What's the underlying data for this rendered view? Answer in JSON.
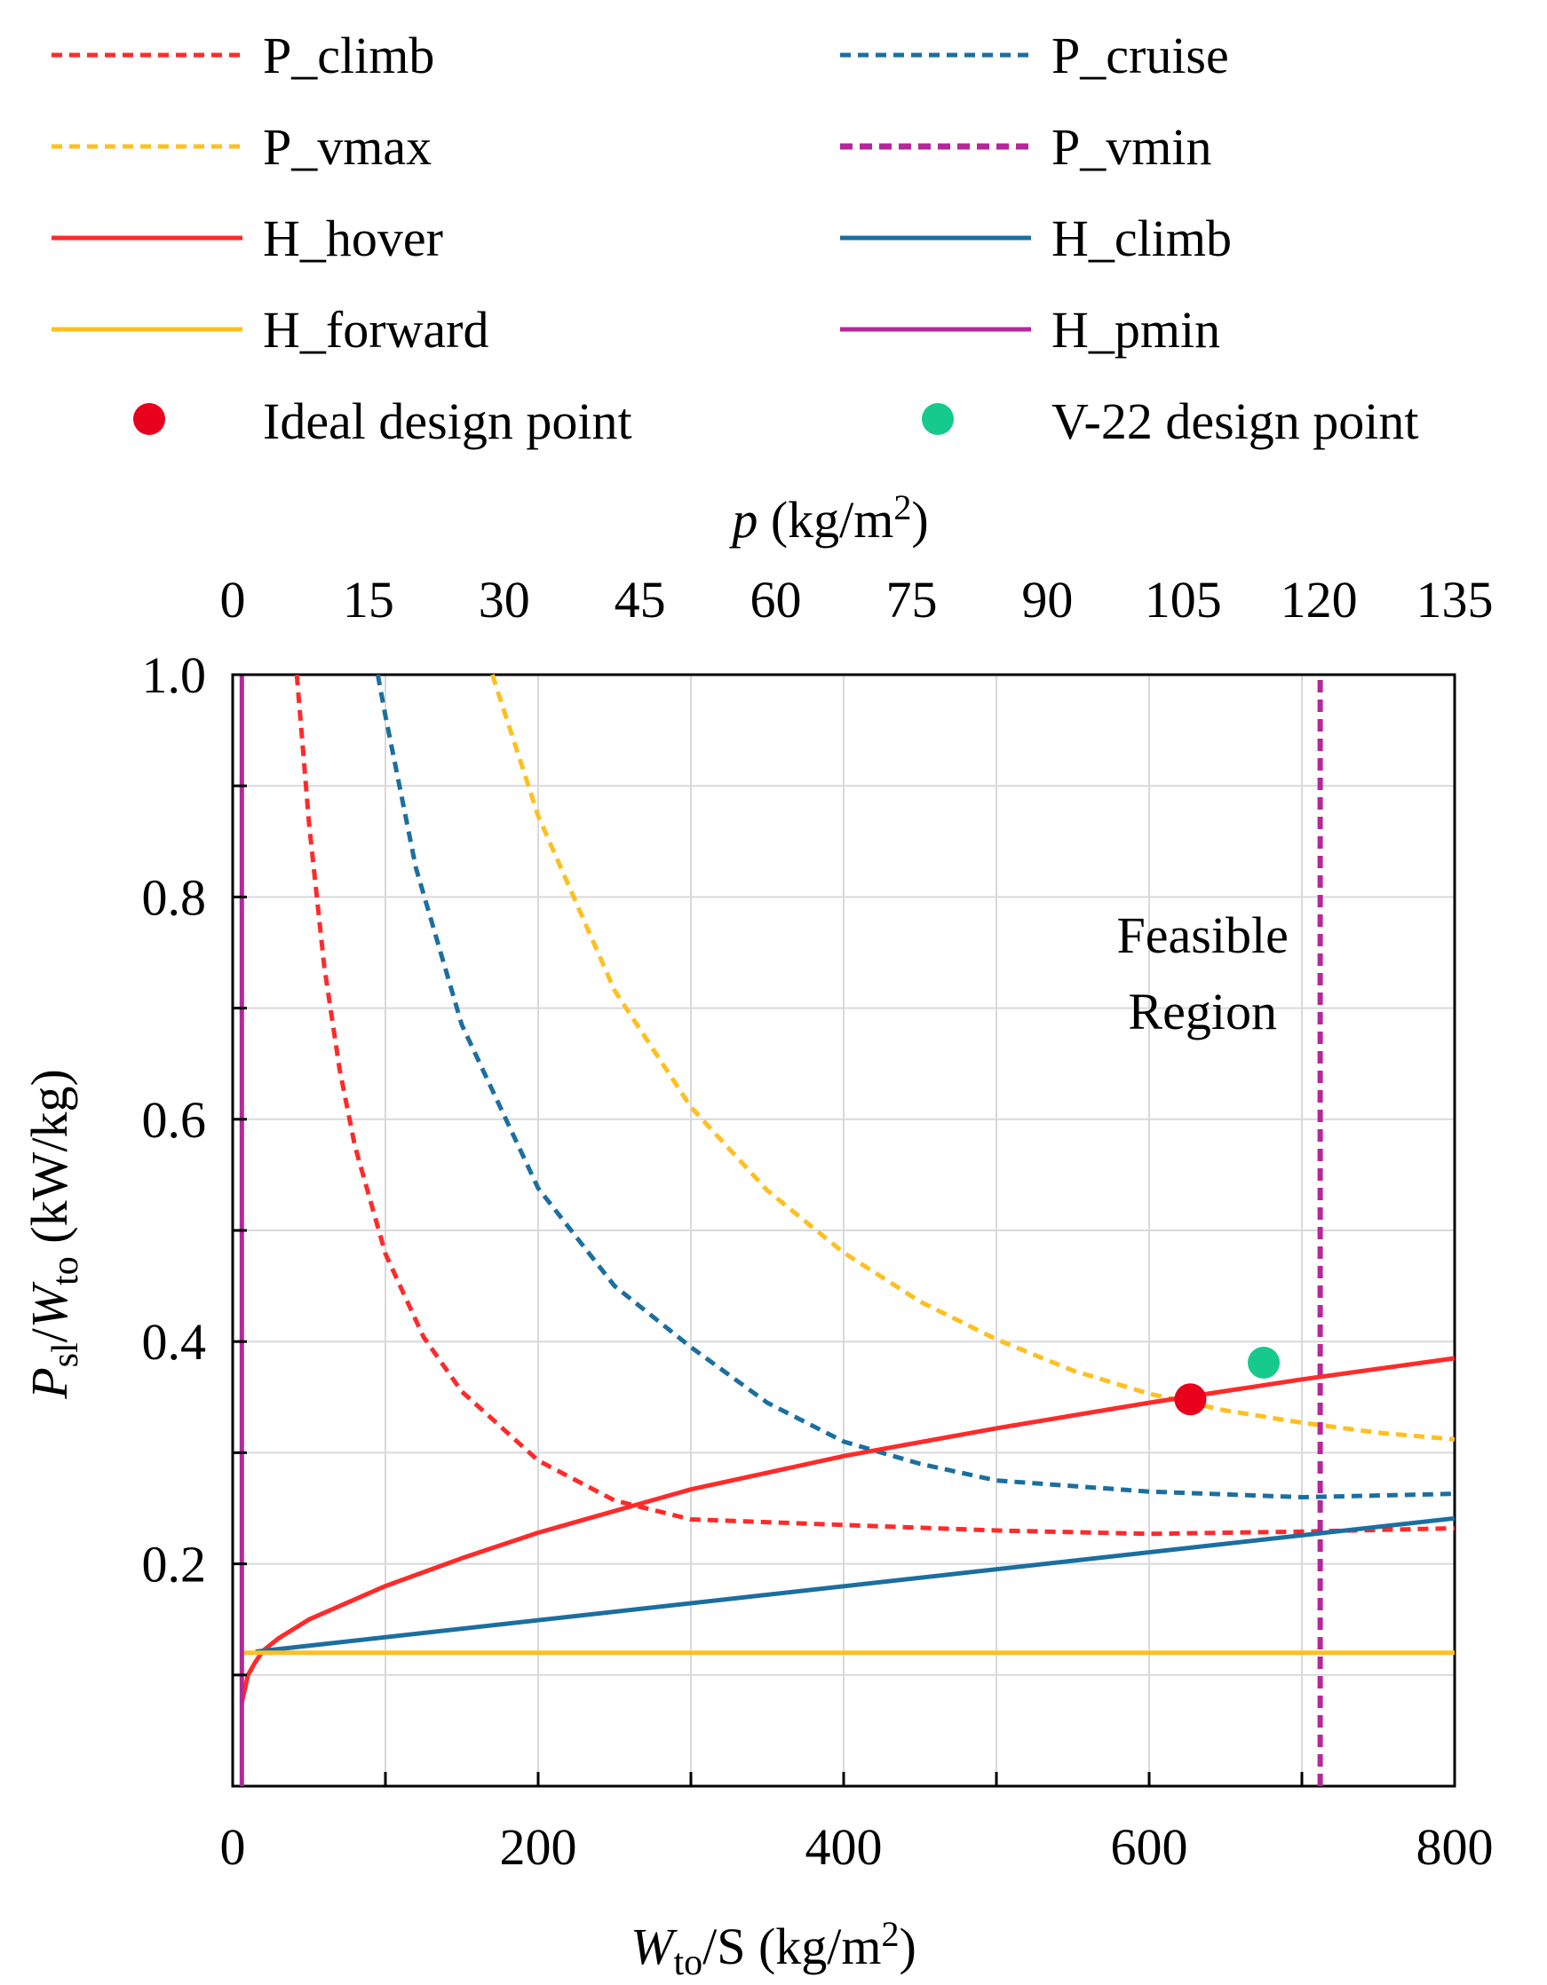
{
  "chart_data": {
    "type": "line",
    "x_axis": {
      "range": [
        0,
        800
      ],
      "ticks": [
        0,
        200,
        400,
        600,
        800
      ],
      "tick_labels": [
        "0",
        "200",
        "400",
        "600",
        "800"
      ],
      "label_main": "W",
      "label_sub": "to",
      "label_rest": "/S (kg/m",
      "label_sup": "2",
      "label_close": ")"
    },
    "x2_axis": {
      "range": [
        0,
        135
      ],
      "ticks": [
        0,
        15,
        30,
        45,
        60,
        75,
        90,
        105,
        120,
        135
      ],
      "tick_labels": [
        "0",
        "15",
        "30",
        "45",
        "60",
        "75",
        "90",
        "105",
        "120",
        "135"
      ],
      "label_main": "p",
      "label_rest": " (kg/m",
      "label_sup": "2",
      "label_close": ")"
    },
    "y_axis": {
      "range": [
        0,
        1.0
      ],
      "ticks": [
        0.2,
        0.4,
        0.6,
        0.8,
        1.0
      ],
      "tick_labels": [
        "0.2",
        "0.4",
        "0.6",
        "0.8",
        "1.0"
      ],
      "label_p": "P",
      "label_p_sub": "sl",
      "label_slash": "/",
      "label_w": "W",
      "label_w_sub": "to",
      "label_rest": " (kW/kg)"
    },
    "grid": true,
    "annotation": {
      "line1": "Feasible",
      "line2": "Region",
      "at": [
        635,
        0.75
      ]
    },
    "legend": [
      {
        "key": "p_climb",
        "label": "P_climb",
        "kind": "dashed",
        "color": "#ff2a2a"
      },
      {
        "key": "p_cruise",
        "label": "P_cruise",
        "kind": "dashed",
        "color": "#1b6fa0"
      },
      {
        "key": "p_vmax",
        "label": "P_vmax",
        "kind": "dashed",
        "color": "#ffbf1f"
      },
      {
        "key": "p_vmin",
        "label": "P_vmin",
        "kind": "dashed",
        "color": "#b5279b"
      },
      {
        "key": "h_hover",
        "label": "H_hover",
        "kind": "solid",
        "color": "#ff2a2a"
      },
      {
        "key": "h_climb",
        "label": "H_climb",
        "kind": "solid",
        "color": "#1b6fa0"
      },
      {
        "key": "h_forward",
        "label": "H_forward",
        "kind": "solid",
        "color": "#ffbf1f"
      },
      {
        "key": "h_pmin",
        "label": "H_pmin",
        "kind": "solid",
        "color": "#b5279b"
      },
      {
        "key": "ideal_point",
        "label": "Ideal design point",
        "kind": "marker",
        "color": "#e8001c"
      },
      {
        "key": "v22_point",
        "label": "V-22 design point",
        "kind": "marker",
        "color": "#16c98d"
      }
    ],
    "series": [
      {
        "key": "p_climb",
        "name": "P_climb",
        "x": [
          42,
          45,
          50,
          60,
          70,
          80,
          100,
          125,
          150,
          200,
          250,
          300,
          400,
          500,
          600,
          700,
          800
        ],
        "y": [
          1.0,
          0.95,
          0.866,
          0.737,
          0.645,
          0.576,
          0.479,
          0.404,
          0.355,
          0.293,
          0.257,
          0.24,
          0.235,
          0.23,
          0.227,
          0.229,
          0.232
        ]
      },
      {
        "key": "p_cruise",
        "name": "P_cruise",
        "x": [
          95,
          100,
          120,
          150,
          200,
          250,
          300,
          350,
          400,
          450,
          500,
          600,
          700,
          800
        ],
        "y": [
          1.0,
          0.963,
          0.826,
          0.685,
          0.538,
          0.45,
          0.395,
          0.345,
          0.31,
          0.29,
          0.275,
          0.265,
          0.26,
          0.263
        ]
      },
      {
        "key": "p_vmax",
        "name": "P_vmax",
        "x": [
          170,
          200,
          250,
          300,
          350,
          400,
          450,
          500,
          550,
          600,
          650,
          700,
          750,
          800
        ],
        "y": [
          1.0,
          0.873,
          0.716,
          0.611,
          0.536,
          0.48,
          0.436,
          0.402,
          0.374,
          0.353,
          0.338,
          0.327,
          0.318,
          0.312
        ]
      },
      {
        "key": "p_vmin",
        "name": "P_vmin",
        "x": [
          712,
          712
        ],
        "y": [
          0,
          1.0
        ]
      },
      {
        "key": "h_hover",
        "name": "H_hover",
        "x": [
          6,
          10,
          15,
          20,
          30,
          50,
          100,
          150,
          200,
          300,
          400,
          500,
          600,
          700,
          800
        ],
        "y": [
          0.075,
          0.1,
          0.112,
          0.122,
          0.133,
          0.15,
          0.18,
          0.205,
          0.228,
          0.267,
          0.297,
          0.322,
          0.345,
          0.366,
          0.385
        ]
      },
      {
        "key": "h_climb",
        "name": "H_climb",
        "x": [
          15,
          800
        ],
        "y": [
          0.121,
          0.241
        ]
      },
      {
        "key": "h_forward",
        "name": "H_forward",
        "x": [
          6,
          800
        ],
        "y": [
          0.12,
          0.12
        ]
      },
      {
        "key": "h_pmin",
        "name": "H_pmin",
        "x": [
          6,
          6
        ],
        "y": [
          0,
          1.0
        ]
      }
    ],
    "points": [
      {
        "key": "ideal_point",
        "name": "Ideal design point",
        "x": 627,
        "y": 0.348
      },
      {
        "key": "v22_point",
        "name": "V-22 design point",
        "x": 675,
        "y": 0.381
      }
    ]
  }
}
